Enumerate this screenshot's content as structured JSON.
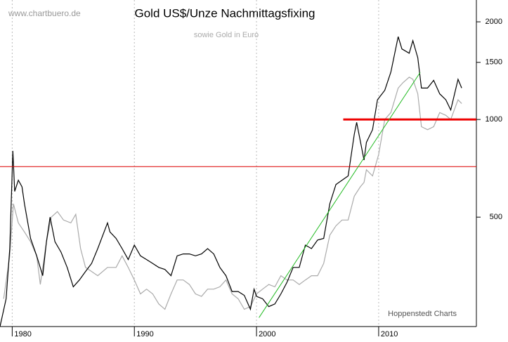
{
  "chart_data": {
    "type": "line",
    "title": "Gold US$/Unze Nachmittagsfixing",
    "subtitle": "sowie Gold in Euro",
    "watermark": "www.chartbuero.de",
    "source": "Hoppenstedt Charts",
    "log_scale": true,
    "grid": true,
    "xlim": [
      1979,
      2018
    ],
    "xticks": [
      1980,
      1990,
      2000,
      2010
    ],
    "ylim": [
      230,
      2335
    ],
    "yticks": [
      500,
      1000,
      1500,
      2000
    ],
    "series": [
      {
        "name": "Gold US$",
        "color": "#000000",
        "x": [
          1979.0,
          1979.5,
          1979.8,
          1980.05,
          1980.2,
          1980.5,
          1980.8,
          1981.0,
          1981.5,
          1982.0,
          1982.5,
          1982.8,
          1983.1,
          1983.5,
          1984.0,
          1984.5,
          1985.0,
          1985.5,
          1986.0,
          1986.5,
          1987.0,
          1987.8,
          1988.0,
          1988.5,
          1989.0,
          1989.5,
          1990.0,
          1990.5,
          1991.0,
          1991.5,
          1992.0,
          1992.5,
          1993.0,
          1993.5,
          1994.0,
          1994.5,
          1995.0,
          1995.5,
          1996.0,
          1996.5,
          1997.0,
          1997.5,
          1998.0,
          1998.5,
          1999.0,
          1999.5,
          1999.8,
          2000.0,
          2000.5,
          2001.0,
          2001.5,
          2002.0,
          2002.5,
          2003.0,
          2003.5,
          2004.0,
          2004.5,
          2005.0,
          2005.5,
          2006.0,
          2006.5,
          2007.0,
          2007.5,
          2008.0,
          2008.2,
          2008.8,
          2009.0,
          2009.5,
          2009.9,
          2010.5,
          2011.0,
          2011.6,
          2011.9,
          2012.5,
          2012.8,
          2013.2,
          2013.5,
          2014.0,
          2014.5,
          2015.0,
          2015.5,
          2015.9,
          2016.5,
          2016.8
        ],
        "values": [
          230,
          280,
          400,
          800,
          600,
          650,
          620,
          550,
          430,
          380,
          330,
          420,
          500,
          420,
          390,
          350,
          305,
          320,
          340,
          360,
          400,
          480,
          450,
          430,
          400,
          370,
          410,
          380,
          370,
          360,
          350,
          345,
          330,
          380,
          385,
          385,
          380,
          385,
          400,
          385,
          350,
          330,
          295,
          295,
          287,
          260,
          300,
          285,
          280,
          265,
          270,
          290,
          315,
          350,
          350,
          410,
          400,
          425,
          430,
          550,
          630,
          650,
          670,
          900,
          980,
          750,
          850,
          930,
          1150,
          1230,
          1400,
          1800,
          1650,
          1600,
          1750,
          1550,
          1250,
          1250,
          1320,
          1200,
          1150,
          1070,
          1330,
          1250
        ]
      },
      {
        "name": "Gold Euro",
        "color": "#aaaaaa",
        "x": [
          1979.3,
          1979.8,
          1980.1,
          1980.5,
          1981.0,
          1981.5,
          1982.0,
          1982.3,
          1982.8,
          1983.2,
          1983.7,
          1984.2,
          1984.8,
          1985.2,
          1985.6,
          1986.0,
          1986.5,
          1987.0,
          1987.8,
          1988.5,
          1989.0,
          1989.5,
          1990.0,
          1990.5,
          1991.0,
          1991.5,
          1992.0,
          1992.5,
          1993.0,
          1993.5,
          1994.0,
          1994.5,
          1995.0,
          1995.5,
          1996.0,
          1996.5,
          1997.0,
          1997.5,
          1998.0,
          1998.5,
          1999.0,
          1999.5,
          2000.0,
          2000.5,
          2001.0,
          2001.5,
          2002.0,
          2002.5,
          2003.0,
          2003.5,
          2004.0,
          2004.5,
          2005.0,
          2005.5,
          2006.0,
          2006.5,
          2007.0,
          2007.5,
          2008.0,
          2008.5,
          2008.8,
          2009.0,
          2009.5,
          2010.0,
          2010.5,
          2011.0,
          2011.6,
          2012.0,
          2012.5,
          2012.8,
          2013.2,
          2013.5,
          2014.0,
          2014.5,
          2015.0,
          2015.5,
          2015.9,
          2016.5,
          2016.8
        ],
        "values": [
          280,
          380,
          550,
          480,
          450,
          420,
          380,
          310,
          420,
          500,
          520,
          490,
          480,
          510,
          400,
          350,
          340,
          330,
          350,
          350,
          380,
          350,
          320,
          290,
          300,
          290,
          270,
          260,
          290,
          320,
          320,
          310,
          290,
          285,
          300,
          300,
          305,
          320,
          290,
          280,
          260,
          265,
          290,
          300,
          310,
          305,
          330,
          320,
          320,
          310,
          320,
          330,
          330,
          360,
          440,
          470,
          490,
          490,
          580,
          620,
          640,
          700,
          670,
          780,
          1000,
          1050,
          1250,
          1300,
          1350,
          1330,
          1200,
          950,
          930,
          950,
          1050,
          1030,
          1000,
          1150,
          1120
        ]
      }
    ],
    "lines": [
      {
        "color": "#dd0000",
        "width": 1,
        "x": [
          1979,
          2018
        ],
        "values": [
          716,
          716
        ]
      },
      {
        "color": "#ee0000",
        "width": 3,
        "x": [
          2007.1,
          2018
        ],
        "values": [
          1000,
          1000
        ]
      },
      {
        "color": "#22bb22",
        "width": 1,
        "x": [
          2000.2,
          2013.4
        ],
        "values": [
          245,
          1397
        ]
      }
    ]
  }
}
